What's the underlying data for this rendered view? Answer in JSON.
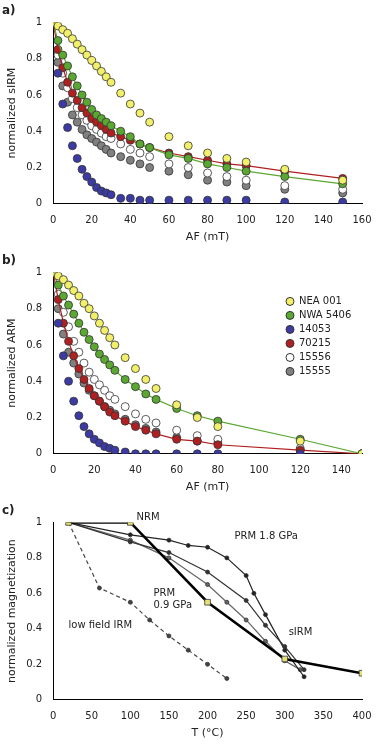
{
  "chart_data": [
    {
      "type": "scatter",
      "title": "a)",
      "x_label": "AF (mT)",
      "y_label": "normalized sIRM",
      "xlim": [
        0,
        160
      ],
      "xticks": [
        0,
        20,
        40,
        60,
        80,
        100,
        120,
        140,
        160
      ],
      "ylim": [
        0,
        1
      ],
      "yticks": [
        0,
        0.2,
        0.4,
        0.6,
        0.8,
        1
      ],
      "grid": false,
      "x": [
        0,
        2.5,
        5,
        7.5,
        10,
        12.5,
        15,
        17.5,
        20,
        22.5,
        25,
        27.5,
        30,
        35,
        40,
        45,
        50,
        60,
        70,
        80,
        90,
        100,
        120,
        150
      ],
      "series": [
        {
          "name": "NEA 001",
          "color": "#f2f06a",
          "marker": "circle",
          "line_style": "none",
          "values": [
            1,
            0.98,
            0.96,
            0.94,
            0.91,
            0.88,
            0.85,
            0.82,
            0.79,
            0.76,
            0.73,
            0.7,
            0.67,
            0.61,
            0.55,
            0.5,
            0.45,
            0.37,
            0.32,
            0.28,
            0.25,
            0.23,
            0.19,
            0.13
          ]
        },
        {
          "name": "NWA 5406",
          "color": "#5aa832",
          "marker": "circle",
          "line_style": "solid",
          "values": [
            1,
            0.9,
            0.82,
            0.76,
            0.7,
            0.65,
            0.6,
            0.56,
            0.52,
            0.49,
            0.47,
            0.45,
            0.43,
            0.4,
            0.37,
            0.33,
            0.31,
            0.27,
            0.25,
            0.22,
            0.2,
            0.18,
            0.15,
            0.11
          ]
        },
        {
          "name": "14053",
          "color": "#3b3ba3",
          "marker": "circle",
          "line_style": "none",
          "values": [
            1,
            0.72,
            0.55,
            0.42,
            0.32,
            0.25,
            0.19,
            0.15,
            0.12,
            0.09,
            0.07,
            0.06,
            0.05,
            0.03,
            0.03,
            0.02,
            0.02,
            0.02,
            0.02,
            0.02,
            0.02,
            0.02,
            0.01,
            0.01
          ]
        },
        {
          "name": "70215",
          "color": "#b02020",
          "marker": "circle",
          "line_style": "solid",
          "values": [
            1,
            0.85,
            0.75,
            0.67,
            0.61,
            0.57,
            0.53,
            0.5,
            0.47,
            0.45,
            0.43,
            0.41,
            0.39,
            0.37,
            0.35,
            0.33,
            0.31,
            0.28,
            0.26,
            0.24,
            0.22,
            0.21,
            0.18,
            0.14
          ]
        },
        {
          "name": "15556",
          "color": "#ffffff",
          "marker": "circle",
          "line_style": "none",
          "values": [
            1,
            0.82,
            0.72,
            0.64,
            0.58,
            0.53,
            0.49,
            0.46,
            0.43,
            0.41,
            0.39,
            0.37,
            0.36,
            0.33,
            0.3,
            0.28,
            0.26,
            0.22,
            0.2,
            0.17,
            0.15,
            0.13,
            0.1,
            0.08
          ]
        },
        {
          "name": "15555",
          "color": "#808080",
          "marker": "circle",
          "line_style": "none",
          "values": [
            1,
            0.78,
            0.65,
            0.56,
            0.49,
            0.45,
            0.41,
            0.38,
            0.36,
            0.34,
            0.32,
            0.3,
            0.28,
            0.26,
            0.24,
            0.22,
            0.2,
            0.18,
            0.16,
            0.13,
            0.12,
            0.1,
            0.08,
            0.06
          ]
        }
      ]
    },
    {
      "type": "scatter",
      "title": "b)",
      "x_label": "AF (mT)",
      "y_label": "normalized ARM",
      "xlim": [
        0,
        150
      ],
      "xticks": [
        0,
        20,
        40,
        60,
        80,
        100,
        120,
        140
      ],
      "ylim": [
        0,
        1
      ],
      "yticks": [
        0,
        0.2,
        0.4,
        0.6,
        0.8,
        1
      ],
      "grid": false,
      "legend": "right",
      "x": [
        0,
        2.5,
        5,
        7.5,
        10,
        12.5,
        15,
        17.5,
        20,
        22.5,
        25,
        27.5,
        30,
        35,
        40,
        45,
        50,
        60,
        70,
        80,
        120,
        150
      ],
      "series": [
        {
          "name": "NEA 001",
          "color": "#f2f06a",
          "marker": "circle",
          "line_style": "none",
          "values": [
            1,
            0.98,
            0.96,
            0.93,
            0.9,
            0.87,
            0.83,
            0.8,
            0.76,
            0.72,
            0.68,
            0.64,
            0.6,
            0.53,
            0.47,
            0.41,
            0.36,
            0.27,
            0.2,
            0.15,
            0.07,
            0
          ]
        },
        {
          "name": "NWA 5406",
          "color": "#5aa832",
          "marker": "circle",
          "line_style": "solid",
          "values": [
            1,
            0.93,
            0.87,
            0.82,
            0.77,
            0.72,
            0.67,
            0.63,
            0.59,
            0.55,
            0.52,
            0.49,
            0.46,
            0.41,
            0.37,
            0.33,
            0.3,
            0.25,
            0.21,
            0.18,
            0.08,
            0
          ]
        },
        {
          "name": "14053",
          "color": "#3b3ba3",
          "marker": "circle",
          "line_style": "none",
          "values": [
            1,
            0.72,
            0.54,
            0.4,
            0.29,
            0.21,
            0.15,
            0.11,
            0.08,
            0.06,
            0.04,
            0.03,
            0.02,
            0.01,
            0,
            0,
            0,
            0,
            0,
            0,
            0,
            0
          ]
        },
        {
          "name": "70215",
          "color": "#b02020",
          "marker": "circle",
          "line_style": "solid",
          "values": [
            1,
            0.85,
            0.72,
            0.62,
            0.54,
            0.47,
            0.41,
            0.36,
            0.32,
            0.29,
            0.26,
            0.23,
            0.21,
            0.18,
            0.15,
            0.13,
            0.11,
            0.08,
            0.07,
            0.05,
            0.02,
            0
          ]
        },
        {
          "name": "15556",
          "color": "#ffffff",
          "marker": "circle",
          "line_style": "none",
          "values": [
            1,
            0.88,
            0.78,
            0.7,
            0.62,
            0.56,
            0.5,
            0.45,
            0.41,
            0.38,
            0.35,
            0.32,
            0.3,
            0.26,
            0.22,
            0.19,
            0.17,
            0.13,
            0.1,
            0.08,
            0.03,
            0
          ]
        },
        {
          "name": "15555",
          "color": "#808080",
          "marker": "circle",
          "line_style": "none",
          "values": [
            1,
            0.8,
            0.66,
            0.56,
            0.5,
            0.44,
            0.39,
            0.35,
            0.32,
            0.29,
            0.26,
            0.24,
            0.22,
            0.19,
            0.16,
            0.14,
            0.12,
            0.09,
            0.07,
            0.06,
            0.02,
            0
          ]
        }
      ]
    },
    {
      "type": "line",
      "title": "c)",
      "x_label": "T (°C)",
      "y_label": "normalized magnetization",
      "xlim": [
        0,
        400
      ],
      "xticks": [
        0,
        50,
        100,
        150,
        200,
        250,
        300,
        350,
        400
      ],
      "ylim": [
        0,
        1
      ],
      "yticks": [
        0,
        0.2,
        0.4,
        0.6,
        0.8,
        1
      ],
      "grid": false,
      "series": [
        {
          "name": "NRM",
          "color": "#000000",
          "marker": "square",
          "line_style": "thick",
          "x": [
            20,
            100,
            200,
            300,
            400
          ],
          "values": [
            1,
            1,
            0.55,
            0.23,
            0.15
          ]
        },
        {
          "name": "PRM 0.9 GPa",
          "color": "#333333",
          "marker": "circle",
          "line_style": "solid",
          "x": [
            20,
            100,
            150,
            200,
            250,
            275,
            300,
            325
          ],
          "values": [
            1,
            0.89,
            0.83,
            0.72,
            0.56,
            0.42,
            0.3,
            0.17
          ]
        },
        {
          "name": "PRM 1.8 GPa",
          "color": "#222222",
          "marker": "circle",
          "line_style": "solid",
          "x": [
            20,
            100,
            150,
            175,
            200,
            225,
            250,
            260,
            275,
            300,
            325
          ],
          "values": [
            1,
            0.93,
            0.9,
            0.87,
            0.86,
            0.8,
            0.7,
            0.6,
            0.48,
            0.28,
            0.13
          ]
        },
        {
          "name": "sIRM",
          "color": "#666666",
          "marker": "circle",
          "line_style": "solid",
          "x": [
            20,
            100,
            150,
            200,
            225,
            250,
            275,
            300,
            320
          ],
          "values": [
            1,
            0.9,
            0.8,
            0.65,
            0.55,
            0.45,
            0.33,
            0.22,
            0.17
          ]
        },
        {
          "name": "low field IRM",
          "color": "#444444",
          "marker": "circle",
          "line_style": "dashed",
          "x": [
            20,
            60,
            100,
            125,
            150,
            175,
            200,
            225
          ],
          "values": [
            1,
            0.63,
            0.55,
            0.45,
            0.36,
            0.28,
            0.2,
            0.12
          ]
        }
      ],
      "annotations": [
        {
          "text": "NRM",
          "x": 108,
          "y": 1.03
        },
        {
          "text": "PRM",
          "x": 130,
          "y": 0.6
        },
        {
          "text": "0.9 GPa",
          "x": 130,
          "y": 0.53
        },
        {
          "text": "PRM 1.8 GPa",
          "x": 235,
          "y": 0.92
        },
        {
          "text": "sIRM",
          "x": 305,
          "y": 0.38
        },
        {
          "text": "low field IRM",
          "x": 20,
          "y": 0.42
        }
      ]
    }
  ]
}
